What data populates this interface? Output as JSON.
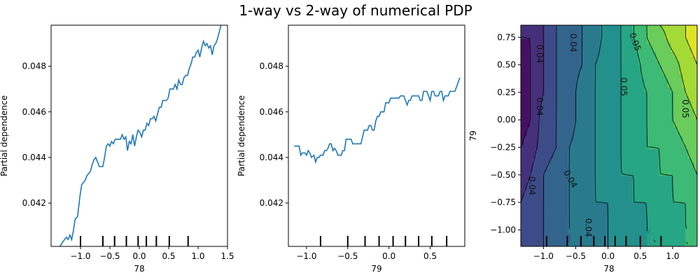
{
  "figure": {
    "title": "1-way vs 2-way of numerical PDP"
  },
  "chart_data": [
    {
      "type": "line",
      "xlabel": "78",
      "ylabel": "Partial dependence",
      "xlim": [
        -1.5,
        1.5
      ],
      "ylim": [
        0.0401,
        0.0498
      ],
      "xticks": [
        -1.0,
        -0.5,
        0.0,
        0.5,
        1.0,
        1.5
      ],
      "xtick_labels": [
        "−1.0",
        "−0.5",
        "0.0",
        "0.5",
        "1.0",
        "1.5"
      ],
      "yticks": [
        0.042,
        0.044,
        0.046,
        0.048
      ],
      "ytick_labels": [
        "0.042",
        "0.044",
        "0.046",
        "0.048"
      ],
      "line_color": "#1f77b4",
      "rug_x": [
        -1.0,
        -0.62,
        -0.42,
        -0.22,
        -0.02,
        0.12,
        0.29,
        0.51,
        0.83
      ],
      "x": [
        -1.35,
        -1.3,
        -1.27,
        -1.24,
        -1.21,
        -1.18,
        -1.15,
        -1.12,
        -1.09,
        -1.05,
        -1.01,
        -0.98,
        -0.95,
        -0.92,
        -0.89,
        -0.86,
        -0.83,
        -0.8,
        -0.77,
        -0.74,
        -0.71,
        -0.68,
        -0.65,
        -0.62,
        -0.59,
        -0.56,
        -0.53,
        -0.5,
        -0.47,
        -0.44,
        -0.41,
        -0.38,
        -0.35,
        -0.32,
        -0.29,
        -0.26,
        -0.23,
        -0.2,
        -0.17,
        -0.14,
        -0.11,
        -0.08,
        -0.05,
        -0.02,
        0.01,
        0.04,
        0.07,
        0.1,
        0.13,
        0.16,
        0.19,
        0.22,
        0.25,
        0.28,
        0.31,
        0.34,
        0.37,
        0.4,
        0.43,
        0.46,
        0.49,
        0.52,
        0.55,
        0.58,
        0.61,
        0.64,
        0.67,
        0.7,
        0.73,
        0.76,
        0.79,
        0.82,
        0.85,
        0.88,
        0.91,
        0.94,
        0.97,
        1.0,
        1.03,
        1.06,
        1.09,
        1.12,
        1.15,
        1.18,
        1.21,
        1.24,
        1.27,
        1.3,
        1.33,
        1.36,
        1.4
      ],
      "y": [
        0.0401,
        0.0403,
        0.0404,
        0.0405,
        0.0404,
        0.0406,
        0.0404,
        0.0408,
        0.0413,
        0.0414,
        0.0423,
        0.0428,
        0.0429,
        0.043,
        0.0432,
        0.0433,
        0.0434,
        0.0437,
        0.0439,
        0.044,
        0.0438,
        0.0436,
        0.0436,
        0.0436,
        0.044,
        0.0445,
        0.0446,
        0.0445,
        0.0447,
        0.0446,
        0.0448,
        0.0448,
        0.0448,
        0.0448,
        0.045,
        0.0448,
        0.0449,
        0.0443,
        0.0447,
        0.0446,
        0.045,
        0.0445,
        0.0449,
        0.0452,
        0.0451,
        0.0449,
        0.0452,
        0.0452,
        0.0455,
        0.0454,
        0.0457,
        0.0457,
        0.0458,
        0.0456,
        0.0459,
        0.0462,
        0.0462,
        0.0465,
        0.0465,
        0.0465,
        0.0466,
        0.047,
        0.047,
        0.047,
        0.0472,
        0.047,
        0.0474,
        0.0472,
        0.0472,
        0.0475,
        0.0476,
        0.0476,
        0.0479,
        0.0481,
        0.0484,
        0.0484,
        0.0486,
        0.0487,
        0.0484,
        0.0488,
        0.0491,
        0.0489,
        0.049,
        0.0488,
        0.0489,
        0.0485,
        0.0489,
        0.049,
        0.0492,
        0.0495,
        0.0499
      ]
    },
    {
      "type": "line",
      "xlabel": "79",
      "ylabel": "Partial dependence",
      "xlim": [
        -1.22,
        0.92
      ],
      "ylim": [
        0.0401,
        0.0498
      ],
      "xticks": [
        -1.0,
        -0.5,
        0.0,
        0.5
      ],
      "xtick_labels": [
        "−1.0",
        "−0.5",
        "0.0",
        "0.5"
      ],
      "yticks": [
        0.042,
        0.044,
        0.046,
        0.048
      ],
      "ytick_labels": [
        "0.042",
        "0.044",
        "0.046",
        "0.048"
      ],
      "line_color": "#1f77b4",
      "rug_x": [
        -0.83,
        -0.5,
        -0.29,
        -0.12,
        0.05,
        0.2,
        0.36,
        0.52,
        0.7
      ],
      "x": [
        -1.15,
        -1.09,
        -1.07,
        -1.05,
        -1.02,
        -1.0,
        -0.98,
        -0.96,
        -0.94,
        -0.91,
        -0.89,
        -0.87,
        -0.85,
        -0.83,
        -0.8,
        -0.78,
        -0.76,
        -0.74,
        -0.72,
        -0.7,
        -0.68,
        -0.66,
        -0.64,
        -0.62,
        -0.6,
        -0.58,
        -0.56,
        -0.54,
        -0.52,
        -0.5,
        -0.48,
        -0.46,
        -0.44,
        -0.42,
        -0.4,
        -0.38,
        -0.36,
        -0.34,
        -0.32,
        -0.3,
        -0.28,
        -0.26,
        -0.24,
        -0.22,
        -0.2,
        -0.18,
        -0.16,
        -0.14,
        -0.12,
        -0.1,
        -0.08,
        -0.06,
        -0.04,
        -0.02,
        0.0,
        0.02,
        0.04,
        0.06,
        0.08,
        0.1,
        0.12,
        0.14,
        0.16,
        0.18,
        0.2,
        0.22,
        0.24,
        0.26,
        0.28,
        0.3,
        0.32,
        0.34,
        0.36,
        0.38,
        0.4,
        0.42,
        0.44,
        0.46,
        0.48,
        0.5,
        0.52,
        0.54,
        0.56,
        0.58,
        0.6,
        0.62,
        0.64,
        0.66,
        0.68,
        0.7,
        0.72,
        0.74,
        0.76,
        0.78,
        0.8,
        0.82,
        0.84,
        0.86
      ],
      "y": [
        0.0445,
        0.0445,
        0.0441,
        0.0442,
        0.0442,
        0.0441,
        0.0443,
        0.0442,
        0.044,
        0.0441,
        0.0438,
        0.044,
        0.044,
        0.0441,
        0.0441,
        0.0443,
        0.0443,
        0.0444,
        0.0446,
        0.0446,
        0.0443,
        0.0444,
        0.0443,
        0.0441,
        0.0441,
        0.0441,
        0.0443,
        0.0443,
        0.0448,
        0.0448,
        0.0448,
        0.0448,
        0.0446,
        0.0446,
        0.0446,
        0.0446,
        0.0446,
        0.0446,
        0.0449,
        0.0452,
        0.0452,
        0.0452,
        0.0454,
        0.0454,
        0.0452,
        0.0452,
        0.0456,
        0.0458,
        0.0458,
        0.046,
        0.046,
        0.046,
        0.0464,
        0.0464,
        0.0464,
        0.0466,
        0.0466,
        0.0466,
        0.0466,
        0.0466,
        0.0466,
        0.0467,
        0.0467,
        0.0467,
        0.0465,
        0.0463,
        0.0465,
        0.0465,
        0.0467,
        0.0467,
        0.0467,
        0.0467,
        0.0467,
        0.0465,
        0.0465,
        0.0469,
        0.0469,
        0.0469,
        0.0467,
        0.0465,
        0.0469,
        0.0469,
        0.0467,
        0.0467,
        0.0467,
        0.0469,
        0.0469,
        0.0465,
        0.0467,
        0.0467,
        0.0467,
        0.0469,
        0.0469,
        0.0469,
        0.0469,
        0.0471,
        0.0473,
        0.0475
      ]
    },
    {
      "type": "heatmap",
      "subtype": "contour",
      "xlabel": "78",
      "ylabel": "79",
      "xlim": [
        -1.35,
        1.38
      ],
      "ylim": [
        -1.15,
        0.86
      ],
      "xticks": [
        -1.0,
        -0.5,
        0.0,
        0.5,
        1.0
      ],
      "xtick_labels": [
        "−1.0",
        "−0.5",
        "0.0",
        "0.5",
        "1.0"
      ],
      "yticks": [
        -1.0,
        -0.75,
        -0.5,
        -0.25,
        0.0,
        0.25,
        0.5,
        0.75
      ],
      "ytick_labels": [
        "−1.00",
        "−0.75",
        "−0.50",
        "−0.25",
        "0.00",
        "0.25",
        "0.50",
        "0.75"
      ],
      "colormap": "viridis",
      "rug_x": [
        -0.95,
        -0.63,
        -0.42,
        -0.22,
        -0.05,
        0.11,
        0.28,
        0.5,
        0.82
      ],
      "x_grid": [
        -1.35,
        -1.2,
        -1.0,
        -0.8,
        -0.6,
        -0.4,
        -0.2,
        0.0,
        0.2,
        0.4,
        0.6,
        0.8,
        1.0,
        1.2,
        1.38
      ],
      "y_grid": [
        -1.15,
        -1.0,
        -0.75,
        -0.5,
        -0.25,
        0.0,
        0.25,
        0.5,
        0.75,
        0.86
      ],
      "z": [
        [
          0.04,
          0.041,
          0.042,
          0.043,
          0.044,
          0.044,
          0.045,
          0.046,
          0.047,
          0.047,
          0.048,
          0.048,
          0.049,
          0.05,
          0.05
        ],
        [
          0.04,
          0.041,
          0.042,
          0.043,
          0.044,
          0.044,
          0.045,
          0.046,
          0.047,
          0.047,
          0.048,
          0.048,
          0.049,
          0.05,
          0.05
        ],
        [
          0.04,
          0.041,
          0.042,
          0.043,
          0.044,
          0.045,
          0.046,
          0.046,
          0.047,
          0.048,
          0.048,
          0.049,
          0.05,
          0.05,
          0.051
        ],
        [
          0.039,
          0.04,
          0.042,
          0.043,
          0.044,
          0.045,
          0.046,
          0.047,
          0.048,
          0.048,
          0.049,
          0.05,
          0.05,
          0.051,
          0.052
        ],
        [
          0.038,
          0.039,
          0.041,
          0.042,
          0.044,
          0.045,
          0.046,
          0.047,
          0.048,
          0.049,
          0.05,
          0.05,
          0.051,
          0.052,
          0.053
        ],
        [
          0.037,
          0.038,
          0.041,
          0.042,
          0.043,
          0.045,
          0.046,
          0.047,
          0.048,
          0.049,
          0.05,
          0.051,
          0.052,
          0.053,
          0.054
        ],
        [
          0.037,
          0.038,
          0.04,
          0.042,
          0.043,
          0.045,
          0.046,
          0.047,
          0.048,
          0.049,
          0.05,
          0.051,
          0.052,
          0.054,
          0.055
        ],
        [
          0.037,
          0.038,
          0.04,
          0.042,
          0.043,
          0.044,
          0.046,
          0.047,
          0.048,
          0.049,
          0.051,
          0.052,
          0.053,
          0.055,
          0.056
        ],
        [
          0.038,
          0.038,
          0.04,
          0.042,
          0.043,
          0.044,
          0.045,
          0.047,
          0.048,
          0.05,
          0.052,
          0.053,
          0.055,
          0.056,
          0.057
        ],
        [
          0.038,
          0.039,
          0.04,
          0.042,
          0.043,
          0.044,
          0.045,
          0.047,
          0.048,
          0.05,
          0.052,
          0.054,
          0.055,
          0.056,
          0.057
        ]
      ],
      "levels": [
        0.036,
        0.038,
        0.04,
        0.042,
        0.044,
        0.046,
        0.048,
        0.05,
        0.052,
        0.054,
        0.056,
        0.058
      ],
      "contour_labels": [
        {
          "text": "0.04",
          "x": -1.1,
          "y": 0.6,
          "rot": 90
        },
        {
          "text": "0.04",
          "x": -1.1,
          "y": 0.12,
          "rot": 90
        },
        {
          "text": "0.04",
          "x": -1.22,
          "y": -0.6,
          "rot": 90
        },
        {
          "text": "0.04",
          "x": -0.58,
          "y": 0.7,
          "rot": 90
        },
        {
          "text": "0.04",
          "x": -0.62,
          "y": -0.55,
          "rot": 60
        },
        {
          "text": "0.04",
          "x": -0.35,
          "y": -0.98,
          "rot": 90
        },
        {
          "text": "0.05",
          "x": 0.38,
          "y": 0.7,
          "rot": 70
        },
        {
          "text": "0.05",
          "x": 0.2,
          "y": 0.3,
          "rot": 90
        },
        {
          "text": "0.05",
          "x": 1.15,
          "y": 0.1,
          "rot": 90
        }
      ]
    }
  ]
}
